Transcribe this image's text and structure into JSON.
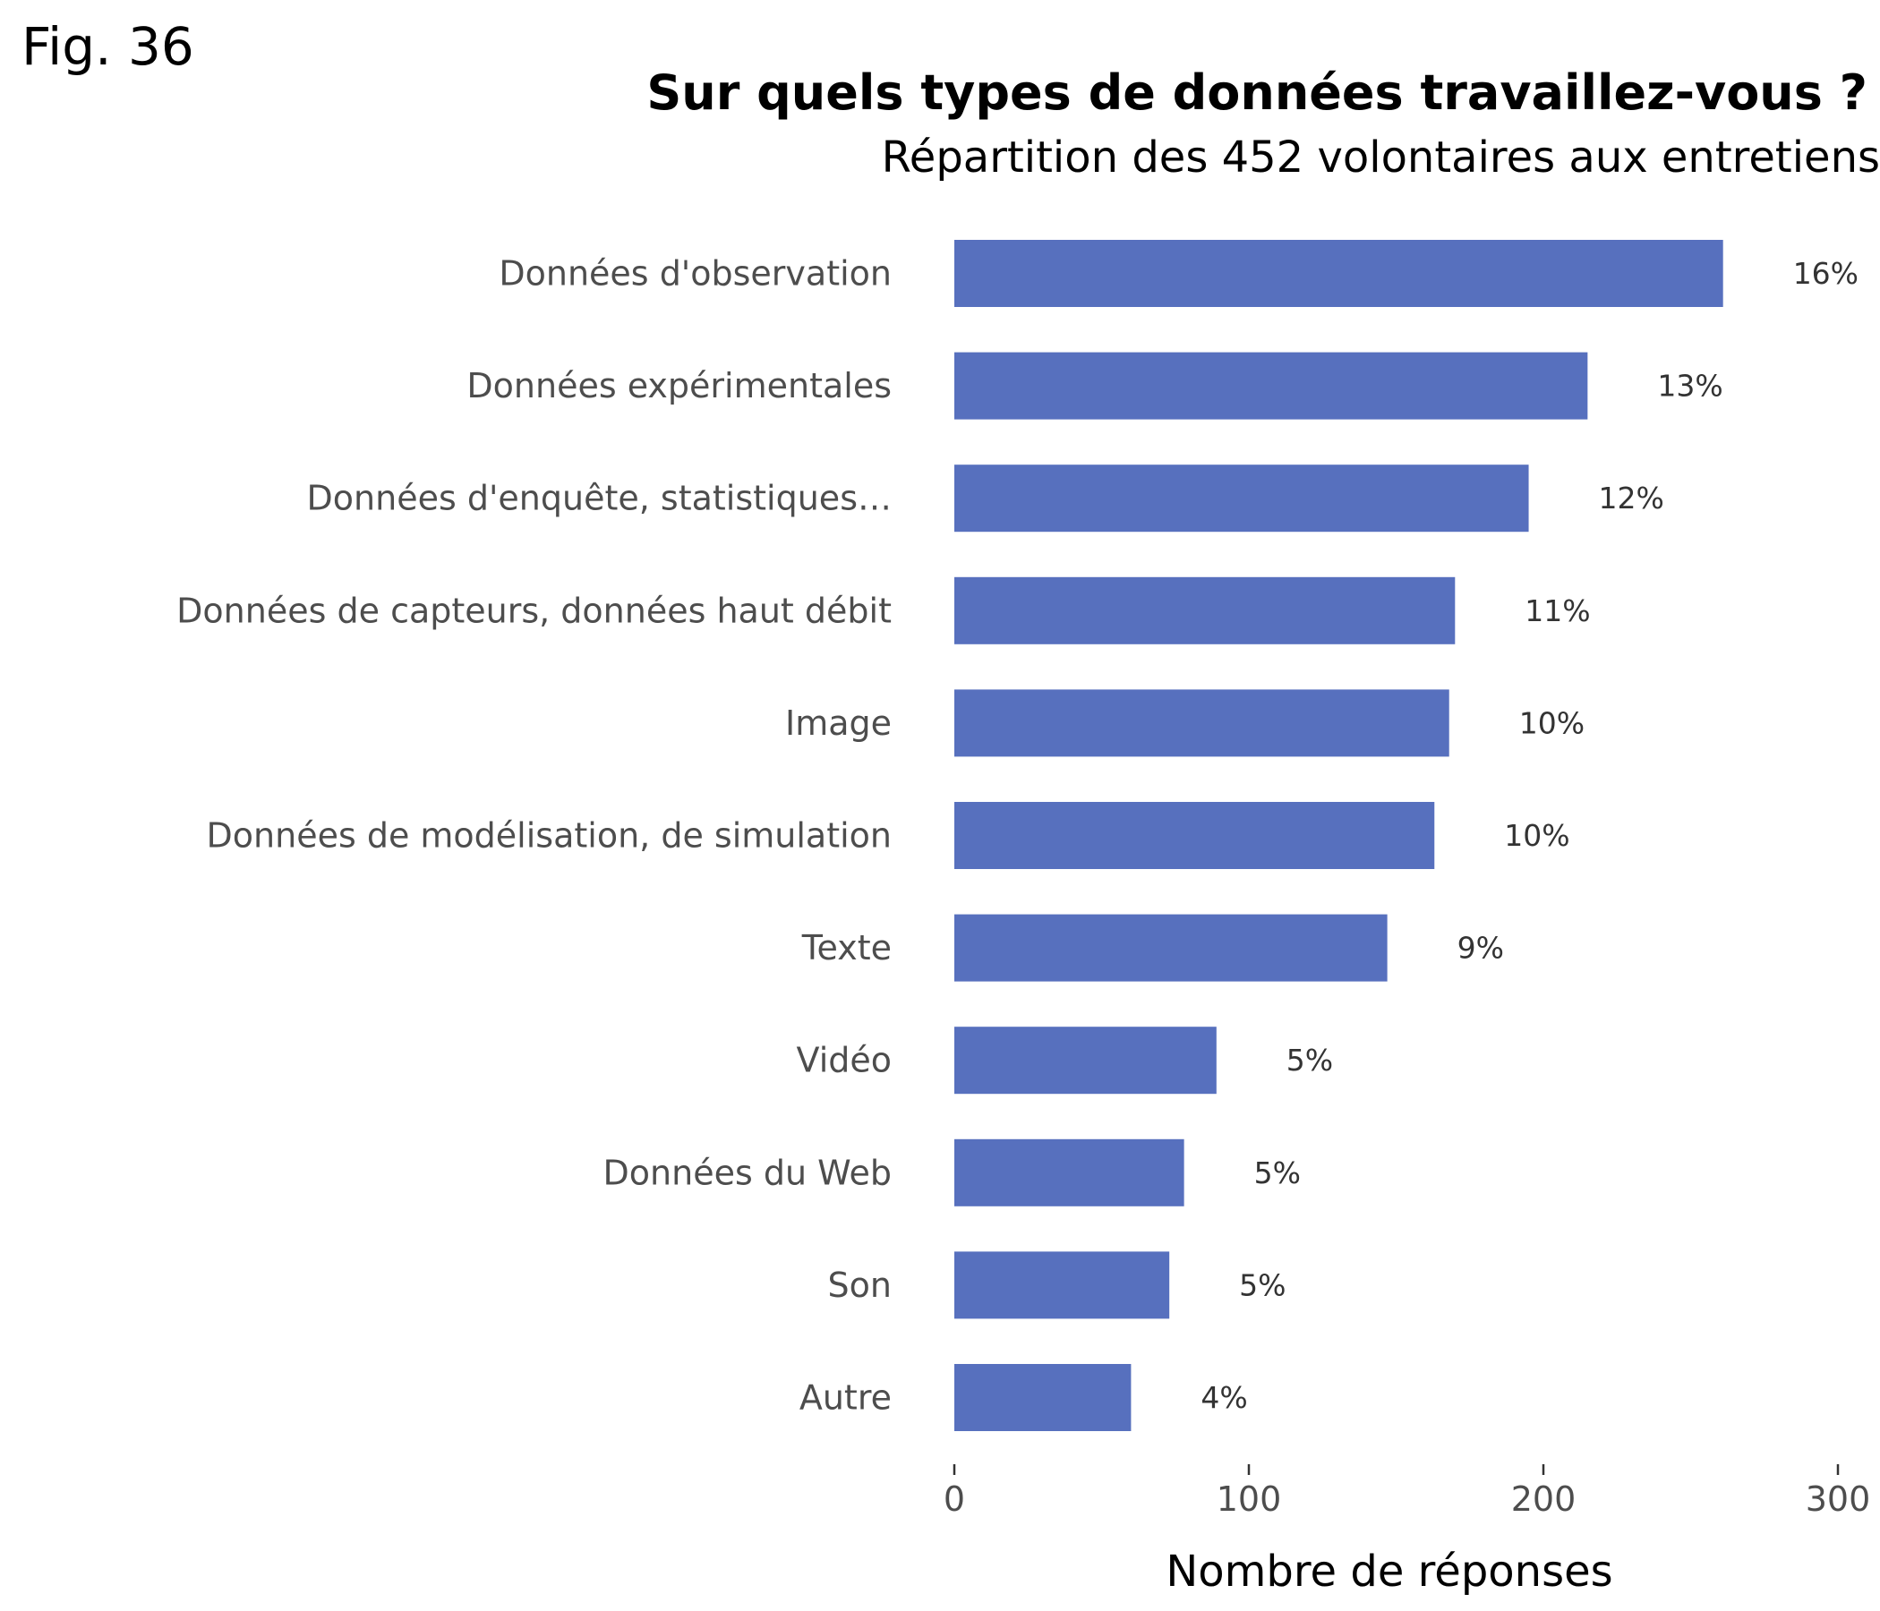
{
  "figure_label": "Fig. 36",
  "chart_data": {
    "type": "bar",
    "orientation": "horizontal",
    "title": "Sur quels types de données travaillez-vous ?",
    "subtitle": "Répartition des 452 volontaires aux entretiens",
    "xlabel": "Nombre de réponses",
    "ylabel": "",
    "xlim": [
      0,
      300
    ],
    "xticks": [
      0,
      100,
      200,
      300
    ],
    "grid": false,
    "bar_color": "#5770BE",
    "categories": [
      "Données d'observation",
      "Données expérimentales",
      "Données d'enquête, statistiques…",
      "Données de capteurs, données haut débit",
      "Image",
      "Données de modélisation, de simulation",
      "Texte",
      "Vidéo",
      "Données du Web",
      "Son",
      "Autre"
    ],
    "values": [
      261,
      215,
      195,
      170,
      168,
      163,
      147,
      89,
      78,
      73,
      60
    ],
    "data_labels": [
      "16%",
      "13%",
      "12%",
      "11%",
      "10%",
      "10%",
      "9%",
      "5%",
      "5%",
      "5%",
      "4%"
    ]
  }
}
